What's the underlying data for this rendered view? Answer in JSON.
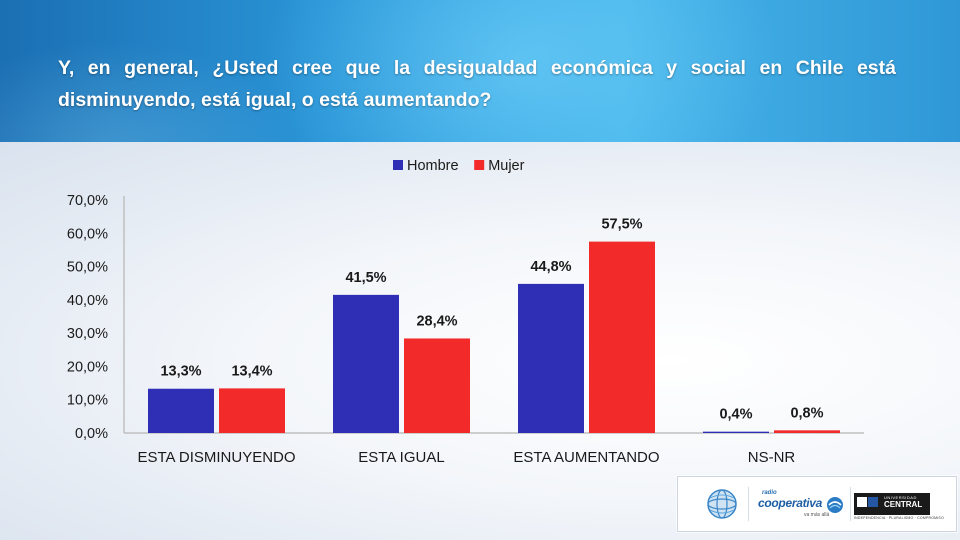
{
  "question": "Y, en general, ¿Usted cree que la desigualdad económica y social en Chile está disminuyendo, está igual, o está aumentando?",
  "logos": {
    "radio_label": "radio",
    "radio_name": "cooperativa",
    "radio_tagline": "va más allá",
    "university_top": "UNIVERSIDAD",
    "university_name": "CENTRAL",
    "university_tagline": "INDEPENDENCIA · PLURALISMO · COMPROMISO"
  },
  "chart_data": {
    "type": "bar",
    "categories": [
      "ESTA DISMINUYENDO",
      "ESTA IGUAL",
      "ESTA AUMENTANDO",
      "NS-NR"
    ],
    "series": [
      {
        "name": "Hombre",
        "color": "#2f2fb5",
        "values": [
          13.3,
          41.5,
          44.8,
          0.4
        ],
        "labels": [
          "13,3%",
          "41,5%",
          "44,8%",
          "0,4%"
        ]
      },
      {
        "name": "Mujer",
        "color": "#f22a2a",
        "values": [
          13.4,
          28.4,
          57.5,
          0.8
        ],
        "labels": [
          "13,4%",
          "28,4%",
          "57,5%",
          "0,8%"
        ]
      }
    ],
    "yticks": [
      "0,0%",
      "10,0%",
      "20,0%",
      "30,0%",
      "40,0%",
      "50,0%",
      "60,0%",
      "70,0%"
    ],
    "ylim": [
      0,
      70
    ],
    "legend_position": "top-center",
    "grid": false
  }
}
